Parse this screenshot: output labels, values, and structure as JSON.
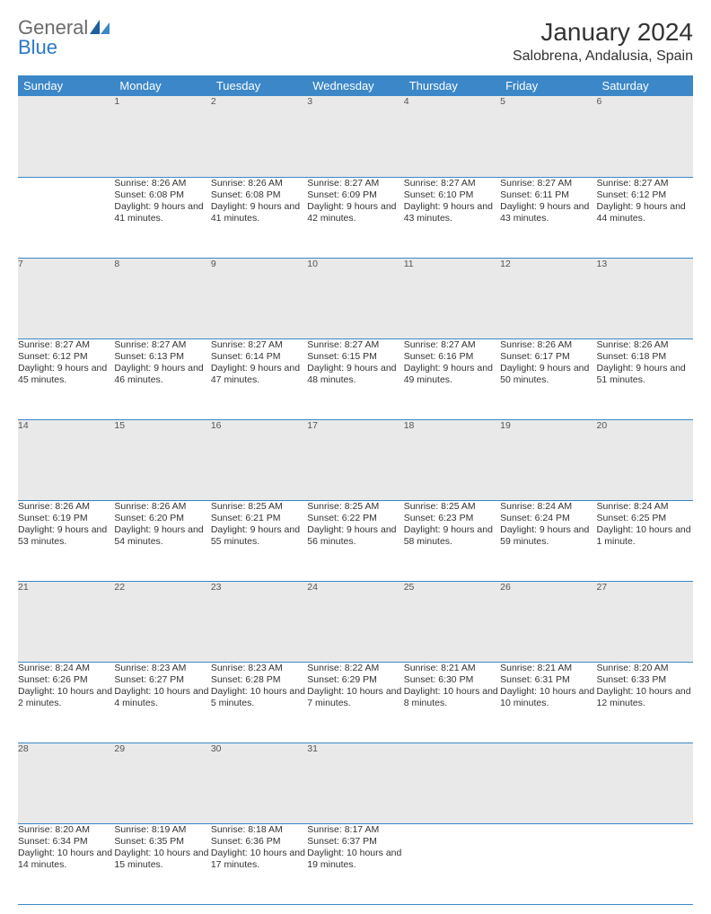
{
  "brand": {
    "part1": "General",
    "part2": "Blue"
  },
  "title": "January 2024",
  "location": "Salobrena, Andalusia, Spain",
  "colors": {
    "header_bg": "#3b87c8",
    "header_text": "#ffffff",
    "daynum_bg": "#e9e9e9",
    "border": "#3b87c8",
    "brand_gray": "#6b6b6b",
    "brand_blue": "#2b78c4"
  },
  "day_headers": [
    "Sunday",
    "Monday",
    "Tuesday",
    "Wednesday",
    "Thursday",
    "Friday",
    "Saturday"
  ],
  "weeks": [
    {
      "nums": [
        "",
        "1",
        "2",
        "3",
        "4",
        "5",
        "6"
      ],
      "cells": [
        {
          "sunrise": "",
          "sunset": "",
          "daylight": ""
        },
        {
          "sunrise": "Sunrise: 8:26 AM",
          "sunset": "Sunset: 6:08 PM",
          "daylight": "Daylight: 9 hours and 41 minutes."
        },
        {
          "sunrise": "Sunrise: 8:26 AM",
          "sunset": "Sunset: 6:08 PM",
          "daylight": "Daylight: 9 hours and 41 minutes."
        },
        {
          "sunrise": "Sunrise: 8:27 AM",
          "sunset": "Sunset: 6:09 PM",
          "daylight": "Daylight: 9 hours and 42 minutes."
        },
        {
          "sunrise": "Sunrise: 8:27 AM",
          "sunset": "Sunset: 6:10 PM",
          "daylight": "Daylight: 9 hours and 43 minutes."
        },
        {
          "sunrise": "Sunrise: 8:27 AM",
          "sunset": "Sunset: 6:11 PM",
          "daylight": "Daylight: 9 hours and 43 minutes."
        },
        {
          "sunrise": "Sunrise: 8:27 AM",
          "sunset": "Sunset: 6:12 PM",
          "daylight": "Daylight: 9 hours and 44 minutes."
        }
      ]
    },
    {
      "nums": [
        "7",
        "8",
        "9",
        "10",
        "11",
        "12",
        "13"
      ],
      "cells": [
        {
          "sunrise": "Sunrise: 8:27 AM",
          "sunset": "Sunset: 6:12 PM",
          "daylight": "Daylight: 9 hours and 45 minutes."
        },
        {
          "sunrise": "Sunrise: 8:27 AM",
          "sunset": "Sunset: 6:13 PM",
          "daylight": "Daylight: 9 hours and 46 minutes."
        },
        {
          "sunrise": "Sunrise: 8:27 AM",
          "sunset": "Sunset: 6:14 PM",
          "daylight": "Daylight: 9 hours and 47 minutes."
        },
        {
          "sunrise": "Sunrise: 8:27 AM",
          "sunset": "Sunset: 6:15 PM",
          "daylight": "Daylight: 9 hours and 48 minutes."
        },
        {
          "sunrise": "Sunrise: 8:27 AM",
          "sunset": "Sunset: 6:16 PM",
          "daylight": "Daylight: 9 hours and 49 minutes."
        },
        {
          "sunrise": "Sunrise: 8:26 AM",
          "sunset": "Sunset: 6:17 PM",
          "daylight": "Daylight: 9 hours and 50 minutes."
        },
        {
          "sunrise": "Sunrise: 8:26 AM",
          "sunset": "Sunset: 6:18 PM",
          "daylight": "Daylight: 9 hours and 51 minutes."
        }
      ]
    },
    {
      "nums": [
        "14",
        "15",
        "16",
        "17",
        "18",
        "19",
        "20"
      ],
      "cells": [
        {
          "sunrise": "Sunrise: 8:26 AM",
          "sunset": "Sunset: 6:19 PM",
          "daylight": "Daylight: 9 hours and 53 minutes."
        },
        {
          "sunrise": "Sunrise: 8:26 AM",
          "sunset": "Sunset: 6:20 PM",
          "daylight": "Daylight: 9 hours and 54 minutes."
        },
        {
          "sunrise": "Sunrise: 8:25 AM",
          "sunset": "Sunset: 6:21 PM",
          "daylight": "Daylight: 9 hours and 55 minutes."
        },
        {
          "sunrise": "Sunrise: 8:25 AM",
          "sunset": "Sunset: 6:22 PM",
          "daylight": "Daylight: 9 hours and 56 minutes."
        },
        {
          "sunrise": "Sunrise: 8:25 AM",
          "sunset": "Sunset: 6:23 PM",
          "daylight": "Daylight: 9 hours and 58 minutes."
        },
        {
          "sunrise": "Sunrise: 8:24 AM",
          "sunset": "Sunset: 6:24 PM",
          "daylight": "Daylight: 9 hours and 59 minutes."
        },
        {
          "sunrise": "Sunrise: 8:24 AM",
          "sunset": "Sunset: 6:25 PM",
          "daylight": "Daylight: 10 hours and 1 minute."
        }
      ]
    },
    {
      "nums": [
        "21",
        "22",
        "23",
        "24",
        "25",
        "26",
        "27"
      ],
      "cells": [
        {
          "sunrise": "Sunrise: 8:24 AM",
          "sunset": "Sunset: 6:26 PM",
          "daylight": "Daylight: 10 hours and 2 minutes."
        },
        {
          "sunrise": "Sunrise: 8:23 AM",
          "sunset": "Sunset: 6:27 PM",
          "daylight": "Daylight: 10 hours and 4 minutes."
        },
        {
          "sunrise": "Sunrise: 8:23 AM",
          "sunset": "Sunset: 6:28 PM",
          "daylight": "Daylight: 10 hours and 5 minutes."
        },
        {
          "sunrise": "Sunrise: 8:22 AM",
          "sunset": "Sunset: 6:29 PM",
          "daylight": "Daylight: 10 hours and 7 minutes."
        },
        {
          "sunrise": "Sunrise: 8:21 AM",
          "sunset": "Sunset: 6:30 PM",
          "daylight": "Daylight: 10 hours and 8 minutes."
        },
        {
          "sunrise": "Sunrise: 8:21 AM",
          "sunset": "Sunset: 6:31 PM",
          "daylight": "Daylight: 10 hours and 10 minutes."
        },
        {
          "sunrise": "Sunrise: 8:20 AM",
          "sunset": "Sunset: 6:33 PM",
          "daylight": "Daylight: 10 hours and 12 minutes."
        }
      ]
    },
    {
      "nums": [
        "28",
        "29",
        "30",
        "31",
        "",
        "",
        ""
      ],
      "cells": [
        {
          "sunrise": "Sunrise: 8:20 AM",
          "sunset": "Sunset: 6:34 PM",
          "daylight": "Daylight: 10 hours and 14 minutes."
        },
        {
          "sunrise": "Sunrise: 8:19 AM",
          "sunset": "Sunset: 6:35 PM",
          "daylight": "Daylight: 10 hours and 15 minutes."
        },
        {
          "sunrise": "Sunrise: 8:18 AM",
          "sunset": "Sunset: 6:36 PM",
          "daylight": "Daylight: 10 hours and 17 minutes."
        },
        {
          "sunrise": "Sunrise: 8:17 AM",
          "sunset": "Sunset: 6:37 PM",
          "daylight": "Daylight: 10 hours and 19 minutes."
        },
        {
          "sunrise": "",
          "sunset": "",
          "daylight": ""
        },
        {
          "sunrise": "",
          "sunset": "",
          "daylight": ""
        },
        {
          "sunrise": "",
          "sunset": "",
          "daylight": ""
        }
      ]
    }
  ]
}
